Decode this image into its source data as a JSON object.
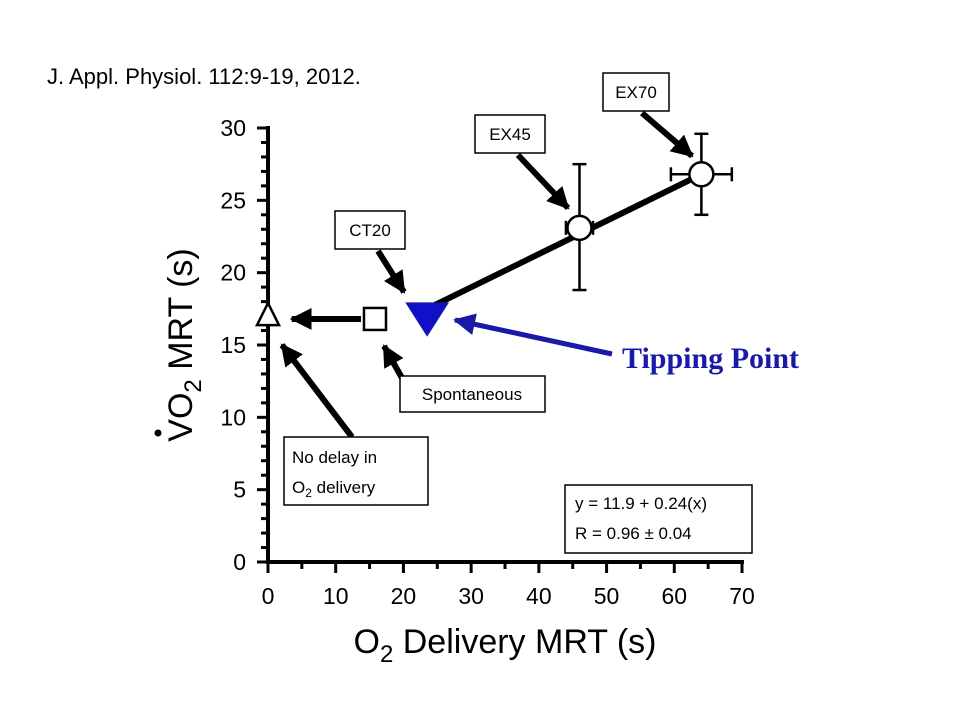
{
  "citation": "J. Appl. Physiol. 112:9-19, 2012.",
  "chart_data": {
    "type": "scatter",
    "xlabel": {
      "main": "O",
      "sub": "2",
      "rest": " Delivery MRT (s)"
    },
    "ylabel": {
      "main": "VO",
      "sub": "2",
      "rest": " MRT (s)"
    },
    "xlim": [
      0,
      70
    ],
    "ylim": [
      0,
      30
    ],
    "xticks": [
      "0",
      "10",
      "20",
      "30",
      "40",
      "50",
      "60",
      "70"
    ],
    "yticks": [
      "0",
      "5",
      "10",
      "15",
      "20",
      "25",
      "30"
    ],
    "points": [
      {
        "label": "No delay in O2 delivery",
        "x": 0,
        "y": 17.0,
        "marker": "triangle-up-open"
      },
      {
        "label": "Spontaneous",
        "x": 15.8,
        "y": 16.8,
        "marker": "square-open"
      },
      {
        "label": "CT20",
        "x": 23.5,
        "y": 17.5,
        "marker": "triangle-down-filled-blue"
      },
      {
        "label": "EX45",
        "x": 46.0,
        "y": 23.1,
        "marker": "circle-open",
        "xerr": 2.0,
        "y_err_low": 18.8,
        "y_err_high": 27.5
      },
      {
        "label": "EX70",
        "x": 64.0,
        "y": 26.8,
        "marker": "circle-open",
        "xerr": 4.5,
        "y_err_low": 24.0,
        "y_err_high": 29.6
      }
    ],
    "regression_line": {
      "x": [
        23.5,
        64.0
      ]
    },
    "equation": [
      "y = 11.9 + 0.24(x)",
      "R = 0.96 ± 0.04"
    ],
    "tipping_point_label": "Tipping Point",
    "annotations": {
      "ct20": "CT20",
      "ex45": "EX45",
      "ex70": "EX70",
      "spontaneous": "Spontaneous",
      "no_delay_line1": "No delay in",
      "no_delay_line2": {
        "main": "O",
        "sub": "2",
        "rest": " delivery"
      }
    },
    "colors": {
      "axis": "#000000",
      "accent": "#1a1aa8",
      "marker_fill": "#1010c8"
    }
  }
}
